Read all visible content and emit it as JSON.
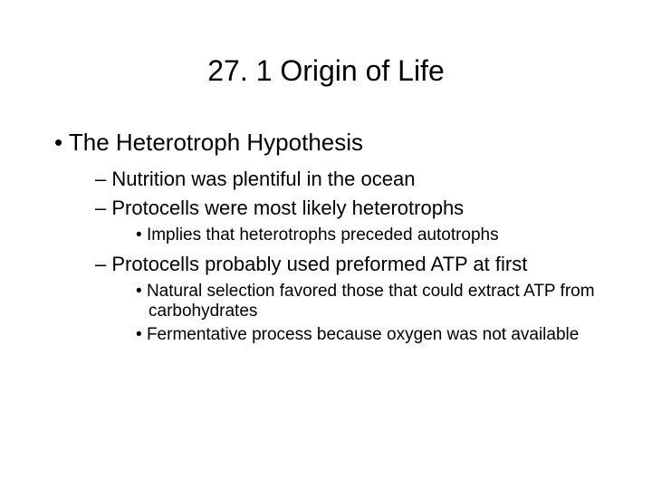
{
  "title": "27. 1  Origin of Life",
  "bullet1": "The Heterotroph Hypothesis",
  "sub1": "Nutrition was plentiful in the ocean",
  "sub2": "Protocells were most likely heterotrophs",
  "subsub1": "Implies that heterotrophs preceded autotrophs",
  "sub3": "Protocells probably used preformed ATP at first",
  "subsub2": "Natural selection favored those that could extract ATP from carbohydrates",
  "subsub3": "Fermentative process because oxygen was not available",
  "colors": {
    "background": "#ffffff",
    "text": "#000000"
  },
  "typography": {
    "title_fontsize": 32,
    "level1_fontsize": 26,
    "level2_fontsize": 22,
    "level3_fontsize": 19,
    "font_family": "Arial"
  }
}
